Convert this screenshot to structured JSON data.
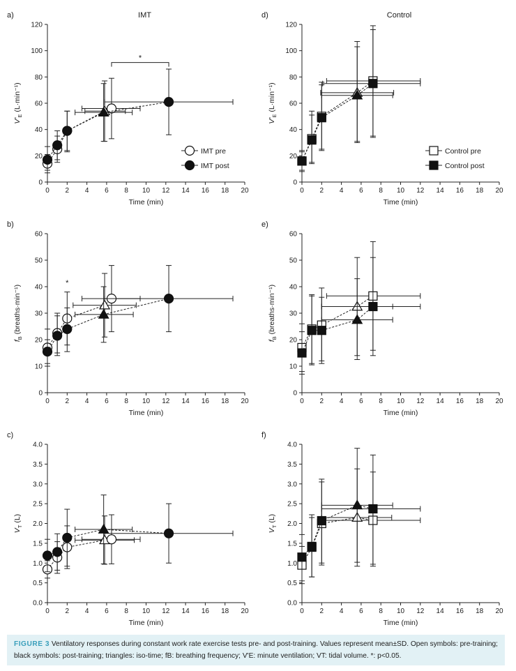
{
  "chart_data": [
    {
      "id": "a",
      "panel_label": "a)",
      "title": "IMT",
      "type": "scatter",
      "xlabel": "Time (min)",
      "ylabel": "V'E (L·min⁻¹)",
      "ylabel_main": "V'",
      "ylabel_sub": "E",
      "ylabel_unit": " (L·min⁻¹)",
      "xlim": [
        0,
        20
      ],
      "ylim": [
        0,
        120
      ],
      "xticks": [
        "0",
        "2",
        "4",
        "6",
        "8",
        "10",
        "12",
        "14",
        "16",
        "18",
        "20"
      ],
      "yticks": [
        "0",
        "20",
        "40",
        "60",
        "80",
        "100",
        "120"
      ],
      "legend": {
        "position": "center-right",
        "entries": [
          {
            "label": "IMT pre",
            "marker": "circle",
            "filled": false
          },
          {
            "label": "IMT post",
            "marker": "circle",
            "filled": true
          }
        ]
      },
      "significance": [
        {
          "x1": 6.5,
          "x2": 12.3,
          "y": 91,
          "label": "*"
        }
      ],
      "series": [
        {
          "name": "IMT pre",
          "marker": "circle",
          "filled": false,
          "points": [
            {
              "x": 0,
              "y": 14,
              "ylo": 7,
              "yhi": 21
            },
            {
              "x": 1,
              "y": 25,
              "ylo": 15,
              "yhi": 35
            },
            {
              "x": 2,
              "y": 39,
              "ylo": 24,
              "yhi": 54
            },
            {
              "x": 5.8,
              "y": 54,
              "ylo": 31,
              "yhi": 77,
              "iso": true,
              "xlo": 3.8,
              "xhi": 7.9
            },
            {
              "x": 6.5,
              "y": 56,
              "ylo": 33,
              "yhi": 79,
              "xlo": 3.5,
              "xhi": 9.4
            }
          ]
        },
        {
          "name": "IMT post",
          "marker": "circle",
          "filled": true,
          "points": [
            {
              "x": 0,
              "y": 17,
              "ylo": 9,
              "yhi": 27
            },
            {
              "x": 1,
              "y": 28,
              "ylo": 17,
              "yhi": 39
            },
            {
              "x": 2,
              "y": 39,
              "ylo": 23,
              "yhi": 54
            },
            {
              "x": 5.7,
              "y": 53,
              "ylo": 31,
              "yhi": 75,
              "iso": true,
              "xlo": 2.8,
              "xhi": 8.6
            },
            {
              "x": 12.3,
              "y": 61,
              "ylo": 36,
              "yhi": 86,
              "xlo": 5.8,
              "xhi": 18.8
            }
          ]
        }
      ]
    },
    {
      "id": "b",
      "panel_label": "b)",
      "title": "",
      "type": "scatter",
      "xlabel": "Time (min)",
      "ylabel": "fB (breaths·min⁻¹)",
      "ylabel_main": "f",
      "ylabel_sub": "B",
      "ylabel_unit": " (breaths·min⁻¹)",
      "xlim": [
        0,
        20
      ],
      "ylim": [
        0,
        60
      ],
      "xticks": [
        "0",
        "2",
        "4",
        "6",
        "8",
        "10",
        "12",
        "14",
        "16",
        "18",
        "20"
      ],
      "yticks": [
        "0",
        "10",
        "20",
        "30",
        "40",
        "50",
        "60"
      ],
      "significance": [
        {
          "x": 2,
          "y": 40.5,
          "label": "*"
        }
      ],
      "series": [
        {
          "name": "IMT pre",
          "marker": "circle",
          "filled": false,
          "points": [
            {
              "x": 0,
              "y": 17,
              "ylo": 10,
              "yhi": 24
            },
            {
              "x": 1,
              "y": 22.5,
              "ylo": 15,
              "yhi": 30
            },
            {
              "x": 2,
              "y": 28,
              "ylo": 18,
              "yhi": 38
            },
            {
              "x": 5.8,
              "y": 33,
              "ylo": 21,
              "yhi": 45,
              "iso": true,
              "xlo": 2.6,
              "xhi": 9.0
            },
            {
              "x": 6.5,
              "y": 35.5,
              "ylo": 23,
              "yhi": 48,
              "xlo": 3.5,
              "xhi": 9.4
            }
          ]
        },
        {
          "name": "IMT post",
          "marker": "circle",
          "filled": true,
          "points": [
            {
              "x": 0,
              "y": 15.5,
              "ylo": 11,
              "yhi": 20
            },
            {
              "x": 1,
              "y": 21.5,
              "ylo": 14,
              "yhi": 29
            },
            {
              "x": 2,
              "y": 24,
              "ylo": 15.5,
              "yhi": 32
            },
            {
              "x": 5.7,
              "y": 29.5,
              "ylo": 19,
              "yhi": 40,
              "iso": true,
              "xlo": 2.8,
              "xhi": 8.7
            },
            {
              "x": 12.3,
              "y": 35.5,
              "ylo": 23,
              "yhi": 48,
              "xlo": 5.8,
              "xhi": 18.8
            }
          ]
        }
      ]
    },
    {
      "id": "c",
      "panel_label": "c)",
      "title": "",
      "type": "scatter",
      "xlabel": "Time (min)",
      "ylabel": "VT (L)",
      "ylabel_main": "V",
      "ylabel_sub": "T",
      "ylabel_unit": " (L)",
      "xlim": [
        0,
        20
      ],
      "ylim": [
        0,
        4.0
      ],
      "xticks": [
        "0",
        "2",
        "4",
        "6",
        "8",
        "10",
        "12",
        "14",
        "16",
        "18",
        "20"
      ],
      "yticks": [
        "0.0",
        "0.5",
        "1.0",
        "1.5",
        "2.0",
        "2.5",
        "3.0",
        "3.5",
        "4.0"
      ],
      "series": [
        {
          "name": "IMT pre",
          "marker": "circle",
          "filled": false,
          "points": [
            {
              "x": 0,
              "y": 0.84,
              "ylo": 0.62,
              "yhi": 1.06
            },
            {
              "x": 1,
              "y": 1.14,
              "ylo": 0.74,
              "yhi": 1.54
            },
            {
              "x": 2,
              "y": 1.4,
              "ylo": 0.86,
              "yhi": 1.94
            },
            {
              "x": 5.8,
              "y": 1.58,
              "ylo": 0.97,
              "yhi": 2.19,
              "iso": true,
              "xlo": 2.8,
              "xhi": 8.8
            },
            {
              "x": 6.5,
              "y": 1.6,
              "ylo": 0.98,
              "yhi": 2.22,
              "xlo": 3.5,
              "xhi": 9.4
            }
          ]
        },
        {
          "name": "IMT post",
          "marker": "circle",
          "filled": true,
          "points": [
            {
              "x": 0,
              "y": 1.19,
              "ylo": 0.78,
              "yhi": 1.6
            },
            {
              "x": 1,
              "y": 1.28,
              "ylo": 0.82,
              "yhi": 1.74
            },
            {
              "x": 2,
              "y": 1.64,
              "ylo": 0.92,
              "yhi": 2.36
            },
            {
              "x": 5.7,
              "y": 1.85,
              "ylo": 0.98,
              "yhi": 2.72,
              "iso": true,
              "xlo": 2.8,
              "xhi": 8.6
            },
            {
              "x": 12.3,
              "y": 1.75,
              "ylo": 1.0,
              "yhi": 2.5,
              "xlo": 5.8,
              "xhi": 18.8
            }
          ]
        }
      ]
    },
    {
      "id": "d",
      "panel_label": "d)",
      "title": "Control",
      "type": "scatter",
      "xlabel": "Time (min)",
      "ylabel": "V'E (L·min⁻¹)",
      "ylabel_main": "V'",
      "ylabel_sub": "E",
      "ylabel_unit": " (L·min⁻¹)",
      "xlim": [
        0,
        20
      ],
      "ylim": [
        0,
        120
      ],
      "xticks": [
        "0",
        "2",
        "4",
        "6",
        "8",
        "10",
        "12",
        "14",
        "16",
        "18",
        "20"
      ],
      "yticks": [
        "0",
        "20",
        "40",
        "60",
        "80",
        "100",
        "120"
      ],
      "legend": {
        "position": "center-right",
        "entries": [
          {
            "label": "Control pre",
            "marker": "square",
            "filled": false
          },
          {
            "label": "Control post",
            "marker": "square",
            "filled": true
          }
        ]
      },
      "series": [
        {
          "name": "Control pre",
          "marker": "square",
          "filled": false,
          "points": [
            {
              "x": 0,
              "y": 16,
              "ylo": 9,
              "yhi": 23
            },
            {
              "x": 1,
              "y": 33,
              "ylo": 15,
              "yhi": 51
            },
            {
              "x": 2,
              "y": 50,
              "ylo": 25,
              "yhi": 74
            },
            {
              "x": 5.6,
              "y": 68,
              "ylo": 30,
              "yhi": 107,
              "iso": true,
              "xlo": 1.9,
              "xhi": 9.3
            },
            {
              "x": 7.2,
              "y": 77,
              "ylo": 35,
              "yhi": 119,
              "xlo": 2.5,
              "xhi": 12.0
            }
          ]
        },
        {
          "name": "Control post",
          "marker": "square",
          "filled": true,
          "points": [
            {
              "x": 0,
              "y": 16,
              "ylo": 8,
              "yhi": 24
            },
            {
              "x": 1,
              "y": 32,
              "ylo": 14,
              "yhi": 54
            },
            {
              "x": 2,
              "y": 49,
              "ylo": 24,
              "yhi": 76
            },
            {
              "x": 5.6,
              "y": 66,
              "ylo": 31,
              "yhi": 103,
              "iso": true,
              "xlo": 2.0,
              "xhi": 9.2
            },
            {
              "x": 7.2,
              "y": 75,
              "ylo": 34,
              "yhi": 116,
              "xlo": 2.1,
              "xhi": 12.0
            }
          ]
        }
      ]
    },
    {
      "id": "e",
      "panel_label": "e)",
      "title": "",
      "type": "scatter",
      "xlabel": "Time (min)",
      "ylabel": "fB (breaths·min⁻¹)",
      "ylabel_main": "f",
      "ylabel_sub": "B",
      "ylabel_unit": " (breaths·min⁻¹)",
      "xlim": [
        0,
        20
      ],
      "ylim": [
        0,
        60
      ],
      "xticks": [
        "0",
        "2",
        "4",
        "6",
        "8",
        "10",
        "12",
        "14",
        "16",
        "18",
        "20"
      ],
      "yticks": [
        "0",
        "10",
        "20",
        "30",
        "40",
        "50",
        "60"
      ],
      "series": [
        {
          "name": "Control pre",
          "marker": "square",
          "filled": false,
          "points": [
            {
              "x": 0,
              "y": 17,
              "ylo": 8,
              "yhi": 26
            },
            {
              "x": 1,
              "y": 24,
              "ylo": 11,
              "yhi": 37
            },
            {
              "x": 2,
              "y": 25.5,
              "ylo": 12,
              "yhi": 39.5
            },
            {
              "x": 5.6,
              "y": 32.5,
              "ylo": 14,
              "yhi": 51,
              "iso": true,
              "xlo": 2.0,
              "xhi": 9.2
            },
            {
              "x": 7.2,
              "y": 36.5,
              "ylo": 16,
              "yhi": 57,
              "xlo": 2.5,
              "xhi": 12.0
            }
          ]
        },
        {
          "name": "Control post",
          "marker": "square",
          "filled": true,
          "points": [
            {
              "x": 0,
              "y": 15,
              "ylo": 7,
              "yhi": 23
            },
            {
              "x": 1,
              "y": 23.5,
              "ylo": 10.5,
              "yhi": 36.5
            },
            {
              "x": 2,
              "y": 23.5,
              "ylo": 11,
              "yhi": 36
            },
            {
              "x": 5.6,
              "y": 27.5,
              "ylo": 12.5,
              "yhi": 43,
              "iso": true,
              "xlo": 2.0,
              "xhi": 9.2
            },
            {
              "x": 7.2,
              "y": 32.5,
              "ylo": 14,
              "yhi": 51,
              "xlo": 2.0,
              "xhi": 12.0
            }
          ]
        }
      ]
    },
    {
      "id": "f",
      "panel_label": "f)",
      "title": "",
      "type": "scatter",
      "xlabel": "Time (min)",
      "ylabel": "VT (L)",
      "ylabel_main": "V",
      "ylabel_sub": "T",
      "ylabel_unit": " (L)",
      "xlim": [
        0,
        20
      ],
      "ylim": [
        0,
        4.0
      ],
      "xticks": [
        "0",
        "2",
        "4",
        "6",
        "8",
        "10",
        "12",
        "14",
        "16",
        "18",
        "20"
      ],
      "yticks": [
        "0.0",
        "0.5",
        "1.0",
        "1.5",
        "2.0",
        "2.5",
        "3.0",
        "3.5",
        "4.0"
      ],
      "series": [
        {
          "name": "Control pre",
          "marker": "square",
          "filled": false,
          "points": [
            {
              "x": 0,
              "y": 0.95,
              "ylo": 0.48,
              "yhi": 1.42
            },
            {
              "x": 1,
              "y": 1.4,
              "ylo": 0.65,
              "yhi": 2.15
            },
            {
              "x": 2,
              "y": 2.0,
              "ylo": 0.95,
              "yhi": 3.05
            },
            {
              "x": 5.6,
              "y": 2.15,
              "ylo": 0.92,
              "yhi": 3.38,
              "iso": true,
              "xlo": 2.0,
              "xhi": 9.1
            },
            {
              "x": 7.2,
              "y": 2.08,
              "ylo": 0.92,
              "yhi": 3.3,
              "xlo": 2.4,
              "xhi": 12.0
            }
          ]
        },
        {
          "name": "Control post",
          "marker": "square",
          "filled": true,
          "points": [
            {
              "x": 0,
              "y": 1.15,
              "ylo": 0.55,
              "yhi": 1.72
            },
            {
              "x": 1,
              "y": 1.42,
              "ylo": 0.65,
              "yhi": 2.22
            },
            {
              "x": 2,
              "y": 2.07,
              "ylo": 1.0,
              "yhi": 3.12
            },
            {
              "x": 5.6,
              "y": 2.46,
              "ylo": 1.02,
              "yhi": 3.9,
              "iso": true,
              "xlo": 2.0,
              "xhi": 9.2
            },
            {
              "x": 7.2,
              "y": 2.37,
              "ylo": 0.97,
              "yhi": 3.73,
              "xlo": 2.0,
              "xhi": 12.0
            }
          ]
        }
      ]
    }
  ],
  "caption": {
    "label": "FIGURE 3",
    "text": "Ventilatory responses during constant work rate exercise tests pre- and post-training. Values represent mean±SD. Open symbols: pre-training; black symbols: post-training; triangles: iso-time; fB: breathing frequency; V'E: minute ventilation; VT: tidal volume. *: p<0.05."
  }
}
